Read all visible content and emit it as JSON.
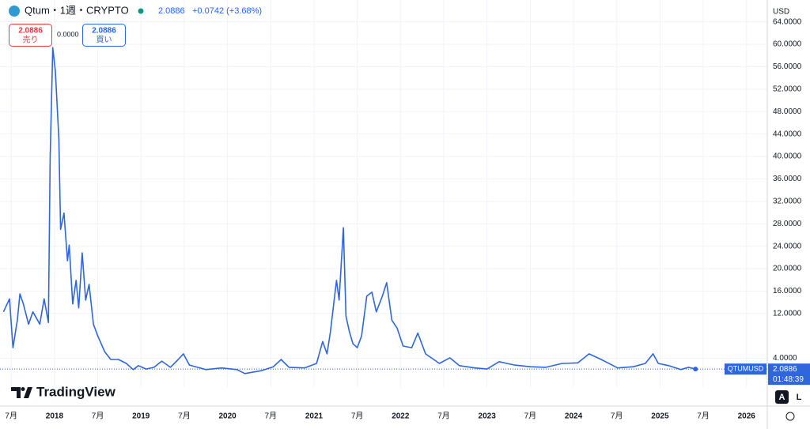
{
  "chart_data": {
    "type": "line",
    "x": [
      2017.41,
      2017.48,
      2017.52,
      2017.57,
      2017.6,
      2017.64,
      2017.7,
      2017.75,
      2017.83,
      2017.88,
      2017.93,
      2017.95,
      2017.98,
      2018.01,
      2018.05,
      2018.07,
      2018.11,
      2018.15,
      2018.17,
      2018.21,
      2018.25,
      2018.28,
      2018.32,
      2018.36,
      2018.4,
      2018.45,
      2018.5,
      2018.58,
      2018.65,
      2018.74,
      2018.83,
      2018.91,
      2018.97,
      2019.06,
      2019.15,
      2019.24,
      2019.34,
      2019.43,
      2019.49,
      2019.56,
      2019.75,
      2019.93,
      2020.11,
      2020.2,
      2020.39,
      2020.53,
      2020.62,
      2020.71,
      2020.89,
      2021.03,
      2021.1,
      2021.15,
      2021.19,
      2021.26,
      2021.29,
      2021.34,
      2021.37,
      2021.41,
      2021.45,
      2021.5,
      2021.55,
      2021.61,
      2021.67,
      2021.72,
      2021.79,
      2021.84,
      2021.9,
      2021.96,
      2022.03,
      2022.13,
      2022.2,
      2022.29,
      2022.45,
      2022.57,
      2022.68,
      2022.86,
      2023.0,
      2023.14,
      2023.32,
      2023.5,
      2023.68,
      2023.87,
      2024.05,
      2024.18,
      2024.32,
      2024.51,
      2024.69,
      2024.83,
      2024.92,
      2024.98,
      2025.1,
      2025.24,
      2025.33,
      2025.41
    ],
    "series": [
      {
        "name": "QTUMUSD",
        "color": "#2f66dd",
        "values": [
          12.3,
          14.6,
          5.9,
          10.8,
          15.5,
          13.7,
          10.1,
          12.3,
          10.1,
          14.6,
          10.4,
          39.7,
          59.4,
          55.2,
          43.2,
          27.0,
          29.9,
          21.4,
          24.2,
          13.7,
          17.9,
          13.0,
          22.8,
          14.4,
          17.2,
          10.1,
          8.0,
          5.2,
          3.8,
          3.8,
          3.1,
          2.0,
          2.7,
          2.1,
          2.4,
          3.5,
          2.4,
          3.8,
          4.8,
          2.8,
          2.0,
          2.3,
          2.0,
          1.3,
          1.8,
          2.5,
          3.8,
          2.4,
          2.3,
          3.1,
          7.0,
          4.8,
          8.7,
          17.9,
          14.4,
          27.3,
          11.5,
          8.7,
          6.6,
          5.9,
          8.0,
          15.1,
          15.8,
          12.3,
          15.1,
          17.5,
          10.8,
          9.4,
          6.2,
          5.9,
          8.5,
          4.8,
          3.1,
          4.1,
          2.7,
          2.3,
          2.1,
          3.4,
          2.8,
          2.5,
          2.4,
          3.1,
          3.2,
          4.8,
          3.8,
          2.3,
          2.5,
          3.1,
          4.8,
          3.1,
          2.7,
          2.0,
          2.4,
          2.0886
        ]
      }
    ],
    "xlim": [
      2017.37,
      2026.24
    ],
    "ylim": [
      -1.13,
      67.9
    ],
    "xticks": [
      {
        "value": 2017.5,
        "label": "7月"
      },
      2018,
      {
        "value": 2018.5,
        "label": "7月"
      },
      2019,
      {
        "value": 2019.5,
        "label": "7月"
      },
      2020,
      {
        "value": 2020.5,
        "label": "7月"
      },
      2021,
      {
        "value": 2021.5,
        "label": "7月"
      },
      2022,
      {
        "value": 2022.5,
        "label": "7月"
      },
      2023,
      {
        "value": 2023.5,
        "label": "7月"
      },
      2024,
      {
        "value": 2024.5,
        "label": "7月"
      },
      2025,
      {
        "value": 2025.5,
        "label": "7月"
      },
      2026
    ],
    "yticks": [
      {
        "value": 64,
        "label": "64.0000"
      },
      {
        "value": 60,
        "label": "60.0000"
      },
      {
        "value": 56,
        "label": "56.0000"
      },
      {
        "value": 52,
        "label": "52.0000"
      },
      {
        "value": 48,
        "label": "48.0000"
      },
      {
        "value": 44,
        "label": "44.0000"
      },
      {
        "value": 40,
        "label": "40.0000"
      },
      {
        "value": 36,
        "label": "36.0000"
      },
      {
        "value": 32,
        "label": "32.0000"
      },
      {
        "value": 28,
        "label": "28.0000"
      },
      {
        "value": 24,
        "label": "24.0000"
      },
      {
        "value": 20,
        "label": "20.0000"
      },
      {
        "value": 16,
        "label": "16.0000"
      },
      {
        "value": 12,
        "label": "12.0000"
      },
      {
        "value": 4,
        "label": "4.0000"
      }
    ],
    "last_price": {
      "value": 2.0886,
      "label": "2.0886"
    },
    "grid": true
  },
  "header": {
    "symbol": "Qtum・1週・CRYPTO",
    "price": "2.0886",
    "change": "+0.0742 (+3.68%)",
    "sell_price": "2.0886",
    "sell_label": "売り",
    "spread": "0.0000",
    "buy_price": "2.0886",
    "buy_label": "買い"
  },
  "ui": {
    "currency": "USD",
    "ticker_tag": "QTUMUSD",
    "countdown": "01:48:39",
    "brand": "TradingView",
    "auto": "A",
    "log": "L"
  }
}
